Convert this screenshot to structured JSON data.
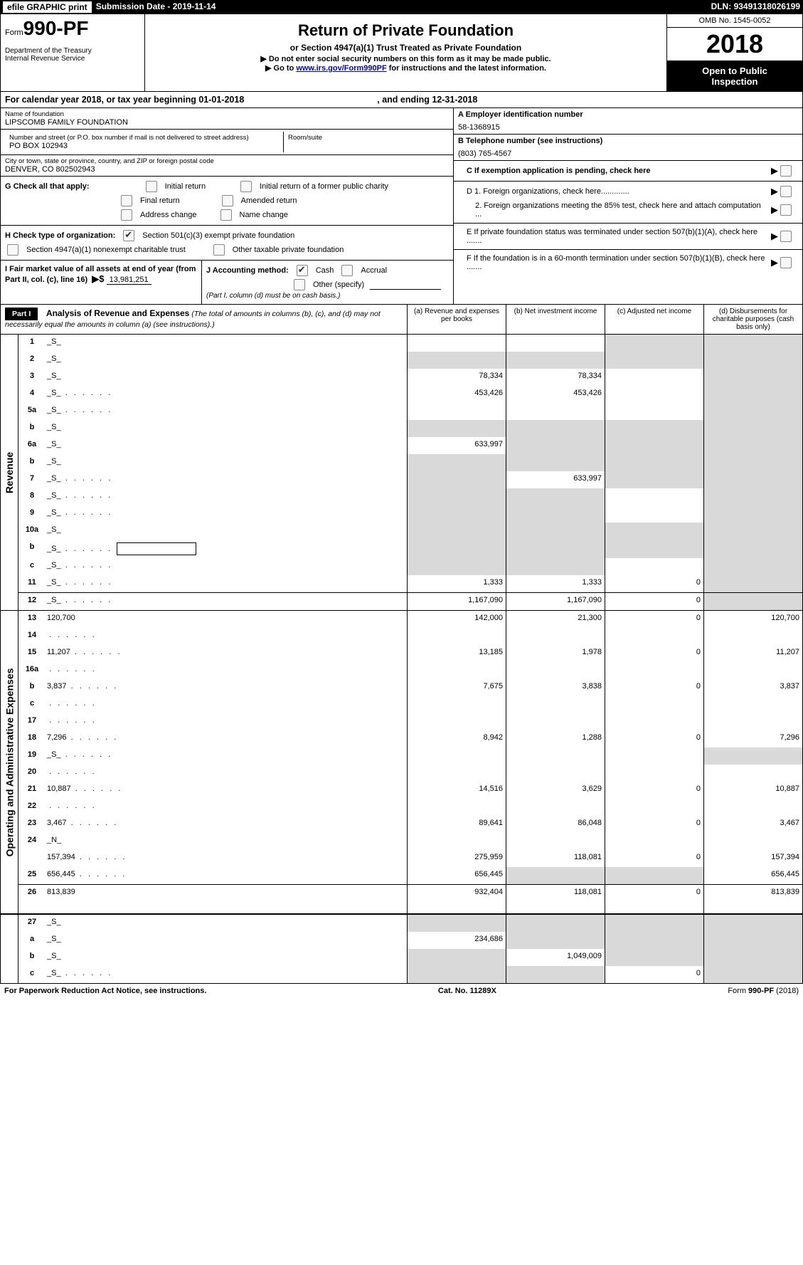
{
  "topbar": {
    "efile": "efile GRAPHIC print",
    "submission_label": "Submission Date - ",
    "submission_date": "2019-11-14",
    "dln_label": "DLN: ",
    "dln": "93491318026199"
  },
  "header": {
    "form_word": "Form",
    "form_no": "990-PF",
    "dept": "Department of the Treasury",
    "irs": "Internal Revenue Service",
    "title": "Return of Private Foundation",
    "subtitle": "or Section 4947(a)(1) Trust Treated as Private Foundation",
    "warn": "▶ Do not enter social security numbers on this form as it may be made public.",
    "goto_pre": "▶ Go to ",
    "goto_link": "www.irs.gov/Form990PF",
    "goto_post": " for instructions and the latest information.",
    "omb": "OMB No. 1545-0052",
    "year": "2018",
    "open1": "Open to Public",
    "open2": "Inspection"
  },
  "calyear": {
    "pre": "For calendar year 2018, or tax year beginning ",
    "begin": "01-01-2018",
    "mid": " , and ending ",
    "end": "12-31-2018"
  },
  "entity": {
    "name_label": "Name of foundation",
    "name": "LIPSCOMB FAMILY FOUNDATION",
    "addr_label": "Number and street (or P.O. box number if mail is not delivered to street address)",
    "addr": "PO BOX 102943",
    "room_label": "Room/suite",
    "city_label": "City or town, state or province, country, and ZIP or foreign postal code",
    "city": "DENVER, CO  802502943"
  },
  "right": {
    "A_label": "A Employer identification number",
    "A_val": "58-1368915",
    "B_label": "B Telephone number (see instructions)",
    "B_val": "(803) 765-4567",
    "C": "C  If exemption application is pending, check here",
    "D1": "D 1. Foreign organizations, check here.............",
    "D2": "2. Foreign organizations meeting the 85% test, check here and attach computation ...",
    "E": "E   If private foundation status was terminated under section 507(b)(1)(A), check here .......",
    "F": "F   If the foundation is in a 60-month termination under section 507(b)(1)(B), check here ......."
  },
  "G": {
    "label": "G Check all that apply:",
    "opts": [
      "Initial return",
      "Initial return of a former public charity",
      "Final return",
      "Amended return",
      "Address change",
      "Name change"
    ]
  },
  "H": {
    "label": "H Check type of organization:",
    "o1": "Section 501(c)(3) exempt private foundation",
    "o2": "Section 4947(a)(1) nonexempt charitable trust",
    "o3": "Other taxable private foundation"
  },
  "I": {
    "label": "I Fair market value of all assets at end of year (from Part II, col. (c), line 16)",
    "arrow": "▶$",
    "val": "13,981,251"
  },
  "J": {
    "label": "J Accounting method:",
    "cash": "Cash",
    "accrual": "Accrual",
    "other": "Other (specify)",
    "note": "(Part I, column (d) must be on cash basis.)"
  },
  "part1": {
    "label": "Part I",
    "title": "Analysis of Revenue and Expenses",
    "note": "(The total of amounts in columns (b), (c), and (d) may not necessarily equal the amounts in column (a) (see instructions).)",
    "cols": {
      "a": "(a)    Revenue and expenses per books",
      "b": "(b)    Net investment income",
      "c": "(c)    Adjusted net income",
      "d": "(d)    Disbursements for charitable purposes (cash basis only)"
    }
  },
  "sides": {
    "rev": "Revenue",
    "exp": "Operating and Administrative Expenses"
  },
  "rows": [
    {
      "n": "1",
      "d": "_S_",
      "a": "",
      "b": "",
      "c": "_S_"
    },
    {
      "n": "2",
      "d": "_S_",
      "a": "_S_",
      "b": "_S_",
      "c": "_S_"
    },
    {
      "n": "3",
      "d": "_S_",
      "a": "78,334",
      "b": "78,334",
      "c": ""
    },
    {
      "n": "4",
      "d": "_S_",
      "dots": true,
      "a": "453,426",
      "b": "453,426",
      "c": ""
    },
    {
      "n": "5a",
      "d": "_S_",
      "dots": true,
      "a": "",
      "b": "",
      "c": ""
    },
    {
      "n": "b",
      "d": "_S_",
      "a": "_S_",
      "b": "_S_",
      "c": "_S_"
    },
    {
      "n": "6a",
      "d": "_S_",
      "a": "633,997",
      "b": "_S_",
      "c": "_S_"
    },
    {
      "n": "b",
      "d": "_S_",
      "a": "_S_",
      "b": "_S_",
      "c": "_S_"
    },
    {
      "n": "7",
      "d": "_S_",
      "dots": true,
      "a": "_S_",
      "b": "633,997",
      "c": "_S_"
    },
    {
      "n": "8",
      "d": "_S_",
      "dots": true,
      "a": "_S_",
      "b": "_S_",
      "c": ""
    },
    {
      "n": "9",
      "d": "_S_",
      "dots": true,
      "a": "_S_",
      "b": "_S_",
      "c": ""
    },
    {
      "n": "10a",
      "d": "_S_",
      "a": "_S_",
      "b": "_S_",
      "c": "_S_"
    },
    {
      "n": "b",
      "d": "_S_",
      "dots": true,
      "box": true,
      "a": "_S_",
      "b": "_S_",
      "c": "_S_"
    },
    {
      "n": "c",
      "d": "_S_",
      "dots": true,
      "a": "_S_",
      "b": "_S_",
      "c": ""
    },
    {
      "n": "11",
      "d": "_S_",
      "dots": true,
      "a": "1,333",
      "b": "1,333",
      "c": "0"
    },
    {
      "n": "12",
      "d": "_S_",
      "dots": true,
      "bt": true,
      "a": "1,167,090",
      "b": "1,167,090",
      "c": "0"
    }
  ],
  "rows2": [
    {
      "n": "13",
      "d": "120,700",
      "a": "142,000",
      "b": "21,300",
      "c": "0"
    },
    {
      "n": "14",
      "d": "",
      "dots": true,
      "a": "",
      "b": "",
      "c": ""
    },
    {
      "n": "15",
      "d": "11,207",
      "dots": true,
      "a": "13,185",
      "b": "1,978",
      "c": "0"
    },
    {
      "n": "16a",
      "d": "",
      "dots": true,
      "a": "",
      "b": "",
      "c": ""
    },
    {
      "n": "b",
      "d": "3,837",
      "dots": true,
      "a": "7,675",
      "b": "3,838",
      "c": "0"
    },
    {
      "n": "c",
      "d": "",
      "dots": true,
      "a": "",
      "b": "",
      "c": ""
    },
    {
      "n": "17",
      "d": "",
      "dots": true,
      "a": "",
      "b": "",
      "c": ""
    },
    {
      "n": "18",
      "d": "7,296",
      "dots": true,
      "a": "8,942",
      "b": "1,288",
      "c": "0"
    },
    {
      "n": "19",
      "d": "_S_",
      "dots": true,
      "a": "",
      "b": "",
      "c": ""
    },
    {
      "n": "20",
      "d": "",
      "dots": true,
      "a": "",
      "b": "",
      "c": ""
    },
    {
      "n": "21",
      "d": "10,887",
      "dots": true,
      "a": "14,516",
      "b": "3,629",
      "c": "0"
    },
    {
      "n": "22",
      "d": "",
      "dots": true,
      "a": "",
      "b": "",
      "c": ""
    },
    {
      "n": "23",
      "d": "3,467",
      "dots": true,
      "a": "89,641",
      "b": "86,048",
      "c": "0"
    },
    {
      "n": "24",
      "d": "_N_",
      "a": "_N_",
      "b": "_N_",
      "c": "_N_"
    },
    {
      "n": "",
      "d": "157,394",
      "dots": true,
      "a": "275,959",
      "b": "118,081",
      "c": "0"
    },
    {
      "n": "25",
      "d": "656,445",
      "dots": true,
      "a": "656,445",
      "b": "_S_",
      "c": "_S_"
    },
    {
      "n": "26",
      "d": "813,839",
      "bt": true,
      "tall": true,
      "a": "932,404",
      "b": "118,081",
      "c": "0"
    }
  ],
  "rows3": [
    {
      "n": "27",
      "d": "_S_",
      "a": "_S_",
      "b": "_S_",
      "c": "_S_"
    },
    {
      "n": "a",
      "d": "_S_",
      "a": "234,686",
      "b": "_S_",
      "c": "_S_"
    },
    {
      "n": "b",
      "d": "_S_",
      "a": "_S_",
      "b": "1,049,009",
      "c": "_S_"
    },
    {
      "n": "c",
      "d": "_S_",
      "dots": true,
      "a": "_S_",
      "b": "_S_",
      "c": "0"
    }
  ],
  "footer": {
    "l": "For Paperwork Reduction Act Notice, see instructions.",
    "c": "Cat. No. 11289X",
    "r": "Form 990-PF (2018)"
  }
}
